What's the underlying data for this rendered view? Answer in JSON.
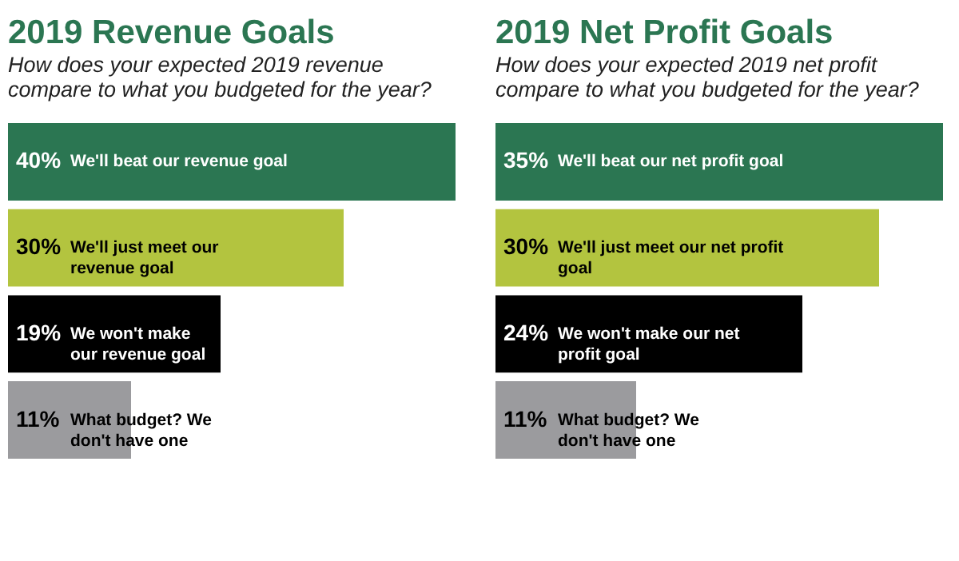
{
  "chart_data": [
    {
      "type": "bar",
      "orientation": "horizontal",
      "title": "2019 Revenue Goals",
      "subtitle": "How does your expected 2019 revenue compare to what you budgeted for the year?",
      "categories": [
        "We'll beat our revenue goal",
        "We'll just meet our revenue goal",
        "We won't make our revenue goal",
        "What budget? We don't have one"
      ],
      "values": [
        40,
        30,
        19,
        11
      ],
      "colors": [
        "#2b7652",
        "#b3c43f",
        "#000000",
        "#9b9b9e"
      ],
      "value_labels": [
        "40%",
        "30%",
        "19%",
        "11%"
      ]
    },
    {
      "type": "bar",
      "orientation": "horizontal",
      "title": "2019 Net Profit Goals",
      "subtitle": "How does your expected 2019 net profit compare to what you budgeted for the year?",
      "categories": [
        "We'll beat our net profit goal",
        "We'll just meet our net profit goal",
        "We won't make our net profit goal",
        "What budget? We don't have one"
      ],
      "values": [
        35,
        30,
        24,
        11
      ],
      "colors": [
        "#2b7652",
        "#b3c43f",
        "#000000",
        "#9b9b9e"
      ],
      "value_labels": [
        "35%",
        "30%",
        "24%",
        "11%"
      ]
    }
  ]
}
